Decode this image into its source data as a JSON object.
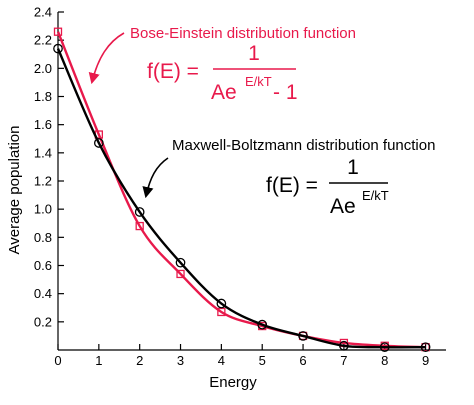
{
  "colors": {
    "bose": "#e8194b",
    "maxwell": "#000000",
    "axis": "#000000",
    "background": "#ffffff"
  },
  "chart_data": {
    "type": "line",
    "xlabel": "Energy",
    "ylabel": "Average population",
    "xlim": [
      0,
      9.5
    ],
    "ylim": [
      0,
      2.4
    ],
    "x_ticks": [
      "0",
      "1",
      "2",
      "3",
      "4",
      "5",
      "6",
      "7",
      "8",
      "9"
    ],
    "y_ticks": [
      "0.2",
      "0.4",
      "0.6",
      "0.8",
      "1.0",
      "1.2",
      "1.4",
      "1.6",
      "1.8",
      "2.0",
      "2.2",
      "2.4"
    ],
    "grid": false,
    "series": [
      {
        "name": "Bose-Einstein distribution function",
        "color": "#e8194b",
        "marker": "square",
        "x": [
          0,
          1,
          2,
          3,
          4,
          5,
          6,
          7,
          8,
          9
        ],
        "y": [
          2.26,
          1.53,
          0.88,
          0.54,
          0.27,
          0.17,
          0.1,
          0.05,
          0.03,
          0.02
        ]
      },
      {
        "name": "Maxwell-Boltzmann distribution function",
        "color": "#000000",
        "marker": "circle",
        "x": [
          0,
          1,
          2,
          3,
          4,
          5,
          6,
          7,
          8,
          9
        ],
        "y": [
          2.14,
          1.47,
          0.98,
          0.62,
          0.33,
          0.18,
          0.1,
          0.03,
          0.02,
          0.02
        ]
      }
    ],
    "annotations": {
      "bose": {
        "label": "Bose-Einstein distribution function",
        "formula_lhs": "f(E) =",
        "numerator": "1",
        "denominator_base": "Ae",
        "denominator_exponent": "E/kT",
        "denominator_tail": "- 1"
      },
      "maxwell": {
        "label": "Maxwell-Boltzmann distribution function",
        "formula_lhs": "f(E) =",
        "numerator": "1",
        "denominator_base": "Ae",
        "denominator_exponent": "E/kT"
      }
    }
  }
}
